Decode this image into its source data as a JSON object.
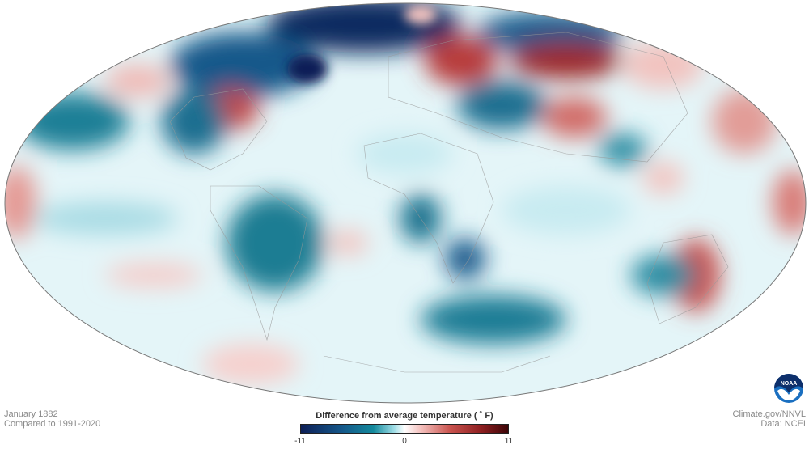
{
  "map": {
    "projection": "Hammer/Mollweide global",
    "variable": "temperature anomaly",
    "colors": {
      "cold_extreme": "#0d1f57",
      "cold": "#13899c",
      "neutral": "#ffffff",
      "warm": "#c9534e",
      "warm_extreme": "#3d0507"
    }
  },
  "meta_left": {
    "date": "January 1882",
    "baseline": "Compared to 1991-2020"
  },
  "meta_right": {
    "source": "Climate.gov/NNVL",
    "data": "Data: NCEI"
  },
  "legend": {
    "title": "Difference from average temperature  ( ˚ F)",
    "min": "-11",
    "mid": "0",
    "max": "11"
  },
  "logo": {
    "text": "NOAA"
  }
}
